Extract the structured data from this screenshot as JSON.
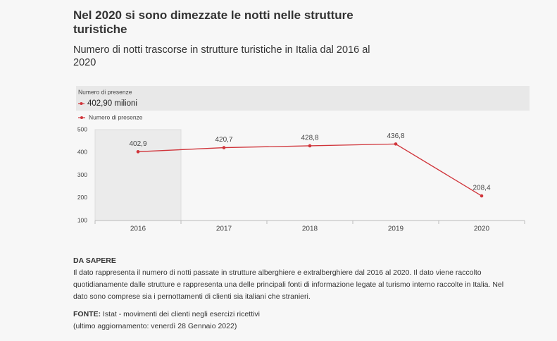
{
  "chart_data": {
    "type": "line",
    "title": "Nel 2020 si sono dimezzate le notti nelle strutture turistiche",
    "subtitle": "Numero di notti trascorse in strutture turistiche in Italia dal 2016 al 2020",
    "tooltip": {
      "label": "Numero di presenze",
      "value": "402,90 milioni"
    },
    "categories": [
      "2016",
      "2017",
      "2018",
      "2019",
      "2020"
    ],
    "series": [
      {
        "name": "Numero di presenze",
        "color": "#d0343a",
        "values": [
          402.9,
          420.7,
          428.8,
          436.8,
          208.4
        ],
        "value_labels": [
          "402,9",
          "420,7",
          "428,8",
          "436,8",
          "208,4"
        ]
      }
    ],
    "ylim": [
      100,
      500
    ],
    "yticks": [
      100,
      200,
      300,
      400,
      500
    ],
    "grid": false
  },
  "notes": {
    "heading": "DA SAPERE",
    "text": "Il dato rappresenta il numero di notti passate in strutture alberghiere e extralberghiere dal 2016 al 2020. Il dato viene raccolto quotidianamente dalle strutture e rappresenta una delle principali fonti di informazione legate al turismo interno raccolte in Italia. Nel dato sono comprese sia i pernottamenti di clienti sia italiani che stranieri.",
    "source_label": "FONTE:",
    "source": "Istat - movimenti dei clienti negli esercizi ricettivi",
    "updated": "(ultimo aggiornamento: venerdì 28 Gennaio 2022)"
  }
}
